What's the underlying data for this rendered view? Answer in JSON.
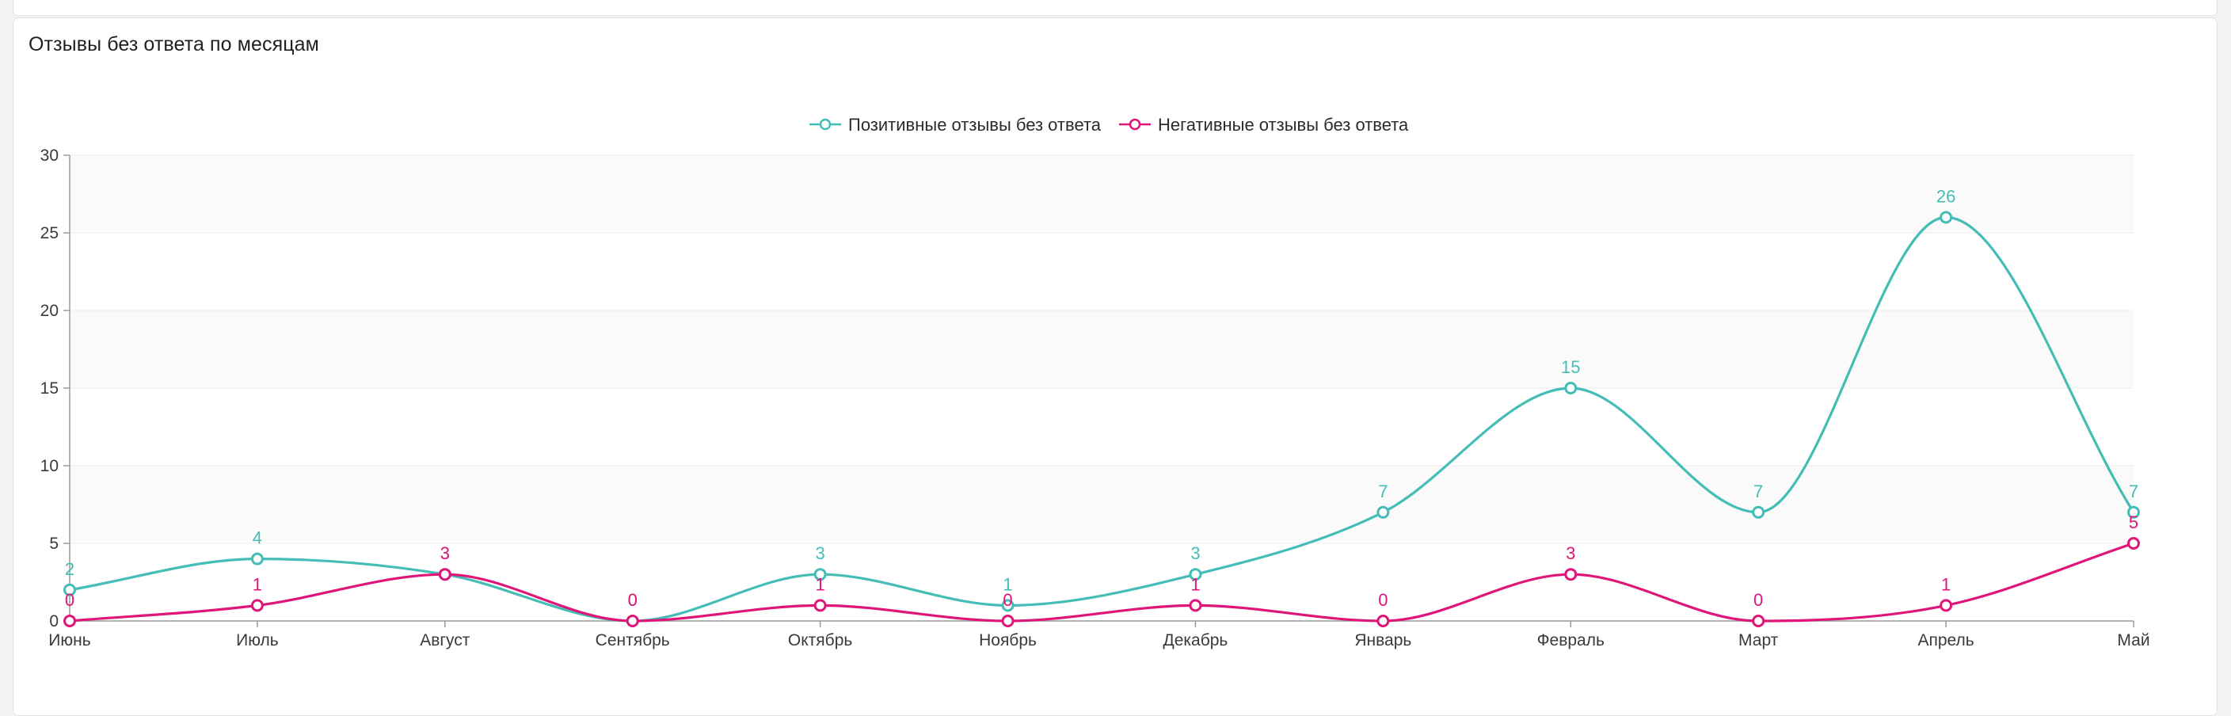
{
  "card": {
    "title": "Отзывы без ответа по месяцам"
  },
  "chart_data": {
    "type": "line",
    "title": "Отзывы без ответа по месяцам",
    "categories": [
      "Июнь",
      "Июль",
      "Август",
      "Сентябрь",
      "Октябрь",
      "Ноябрь",
      "Декабрь",
      "Январь",
      "Февраль",
      "Март",
      "Апрель",
      "Май"
    ],
    "series": [
      {
        "name": "Позитивные отзывы без ответа",
        "color": "#45bdb7",
        "values": [
          2,
          4,
          3,
          0,
          3,
          1,
          3,
          7,
          15,
          7,
          26,
          7
        ]
      },
      {
        "name": "Негативные отзывы без ответа",
        "color": "#e0157a",
        "values": [
          0,
          1,
          3,
          0,
          1,
          0,
          1,
          0,
          3,
          0,
          1,
          5
        ]
      }
    ],
    "ylim": [
      0,
      30
    ],
    "yticks": [
      0,
      5,
      10,
      15,
      20,
      25,
      30
    ],
    "smooth": true,
    "data_labels": true,
    "legend": "top-center",
    "grid": true,
    "striped_background": true
  }
}
